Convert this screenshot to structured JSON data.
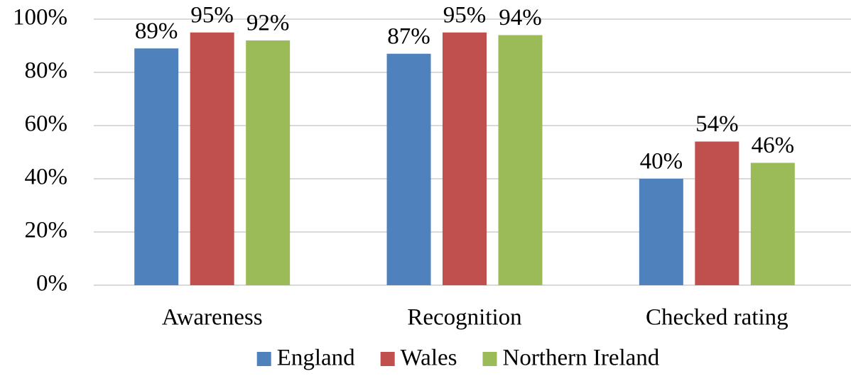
{
  "chart_data": {
    "type": "bar",
    "categories": [
      "Awareness",
      "Recognition",
      "Checked rating"
    ],
    "series": [
      {
        "name": "England",
        "color": "#4f81bd",
        "values": [
          89,
          87,
          40
        ],
        "value_labels": [
          "89%",
          "87%",
          "40%"
        ]
      },
      {
        "name": "Wales",
        "color": "#c0504d",
        "values": [
          95,
          95,
          54
        ],
        "value_labels": [
          "95%",
          "95%",
          "54%"
        ]
      },
      {
        "name": "Northern Ireland",
        "color": "#9bbb59",
        "values": [
          92,
          94,
          46
        ],
        "value_labels": [
          "92%",
          "94%",
          "46%"
        ]
      }
    ],
    "ylim": [
      0,
      100
    ],
    "yticks": [
      {
        "value": 0,
        "label": "0%"
      },
      {
        "value": 20,
        "label": "20%"
      },
      {
        "value": 40,
        "label": "40%"
      },
      {
        "value": 60,
        "label": "60%"
      },
      {
        "value": 80,
        "label": "80%"
      },
      {
        "value": 100,
        "label": "100%"
      }
    ],
    "grid": true,
    "legend": "bottom"
  }
}
